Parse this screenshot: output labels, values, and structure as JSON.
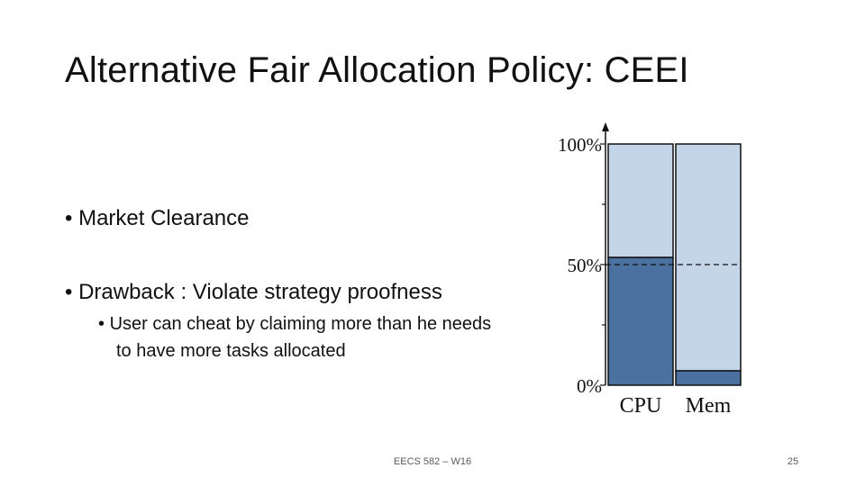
{
  "slide": {
    "title": "Alternative Fair Allocation Policy: CEEI",
    "bullets": [
      {
        "marker": "•",
        "text": "Market Clearance"
      },
      {
        "marker": "•",
        "text": "Drawback : Violate strategy proofness"
      }
    ],
    "subbullet": {
      "marker": "•",
      "line1": "User can cheat by claiming more than he needs",
      "line2": "to have more tasks allocated"
    },
    "footer": {
      "center": "EECS 582 – W16",
      "page": "25"
    }
  },
  "colors": {
    "dark_share": "#4A71A0",
    "light_share": "#C5D5E8",
    "bar_outline": "#111111"
  },
  "chart_data": {
    "type": "bar",
    "stacked": true,
    "categories": [
      "CPU",
      "Mem"
    ],
    "series": [
      {
        "values": [
          53,
          6
        ],
        "color": "#4A71A0"
      },
      {
        "values": [
          47,
          94
        ],
        "color": "#C5D5E8"
      }
    ],
    "ylim": [
      0,
      100
    ],
    "y_ticks": [
      {
        "value": 0,
        "label": "0%"
      },
      {
        "value": 50,
        "label": "50%"
      },
      {
        "value": 100,
        "label": "100%"
      }
    ],
    "reference_line": 50,
    "grid": false
  }
}
